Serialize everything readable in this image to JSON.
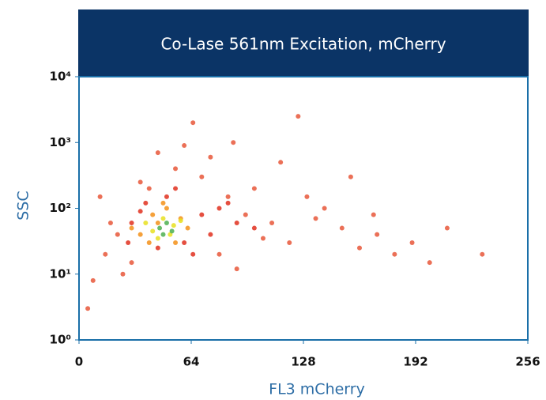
{
  "chart_data": {
    "type": "scatter",
    "title": "Co-Lase 561nm Excitation, mCherry",
    "x_label": "FL3 mCherry",
    "y_label": "SSC",
    "xlim": [
      0,
      256
    ],
    "xticks": [
      0,
      64,
      128,
      192,
      256
    ],
    "ylim": [
      1,
      10000
    ],
    "ylog": true,
    "yticks": [
      {
        "value": 1,
        "label": "10⁰"
      },
      {
        "value": 10,
        "label": "10¹"
      },
      {
        "value": 100,
        "label": "10²"
      },
      {
        "value": 1000,
        "label": "10³"
      },
      {
        "value": 10000,
        "label": "10⁴"
      }
    ],
    "series": [
      {
        "color": "#e8573a",
        "x": [
          15,
          22,
          30,
          8,
          40,
          55,
          70,
          85,
          95,
          110,
          120,
          135,
          150,
          160,
          170,
          180,
          190,
          200,
          75,
          88,
          100,
          115,
          130,
          60,
          45,
          35,
          25,
          18,
          12,
          5,
          65,
          80,
          140,
          155,
          168,
          210,
          230,
          90,
          105,
          125
        ],
        "y": [
          20,
          40,
          15,
          8,
          200,
          400,
          300,
          150,
          80,
          60,
          30,
          70,
          50,
          25,
          40,
          20,
          30,
          15,
          600,
          1000,
          200,
          500,
          150,
          900,
          700,
          250,
          10,
          60,
          150,
          3,
          2000,
          20,
          100,
          300,
          80,
          50,
          20,
          12,
          35,
          2500
        ]
      },
      {
        "color": "#e0301e",
        "x": [
          30,
          38,
          45,
          60,
          70,
          80,
          28,
          50,
          65,
          90,
          100,
          35,
          55,
          75,
          85
        ],
        "y": [
          60,
          120,
          25,
          30,
          80,
          100,
          30,
          150,
          20,
          60,
          50,
          90,
          200,
          40,
          120
        ]
      },
      {
        "color": "#f39019",
        "x": [
          35,
          42,
          50,
          58,
          62,
          40,
          48,
          55,
          30,
          45
        ],
        "y": [
          40,
          80,
          100,
          70,
          50,
          30,
          120,
          30,
          50,
          60
        ]
      },
      {
        "color": "#e8e020",
        "x": [
          42,
          48,
          54,
          45,
          52,
          38,
          58
        ],
        "y": [
          45,
          70,
          55,
          35,
          40,
          60,
          65
        ]
      },
      {
        "color": "#4caf50",
        "x": [
          46,
          50,
          53,
          48
        ],
        "y": [
          50,
          60,
          45,
          40
        ]
      }
    ]
  }
}
